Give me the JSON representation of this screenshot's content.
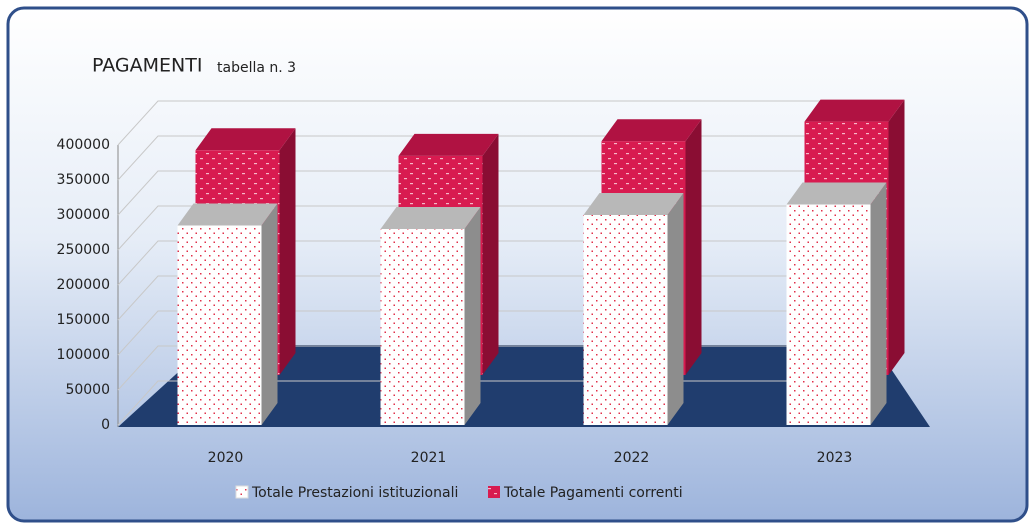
{
  "chart_data": {
    "type": "bar3d",
    "title": "PAGAMENTI",
    "subtitle": "tabella n. 3",
    "categories": [
      "2020",
      "2021",
      "2022",
      "2023"
    ],
    "series": [
      {
        "name": "Totale Prestazioni istituzionali",
        "color": "#ffffff",
        "values": [
          285000,
          280000,
          300000,
          315000
        ]
      },
      {
        "name": "Totale Pagamenti correnti",
        "color": "#d81b50",
        "values": [
          321000,
          313000,
          334000,
          362000
        ]
      }
    ],
    "ylim": [
      0,
      400000
    ],
    "yticks": [
      0,
      50000,
      100000,
      150000,
      200000,
      250000,
      300000,
      350000,
      400000
    ],
    "grid": true,
    "legend": "bottom"
  }
}
